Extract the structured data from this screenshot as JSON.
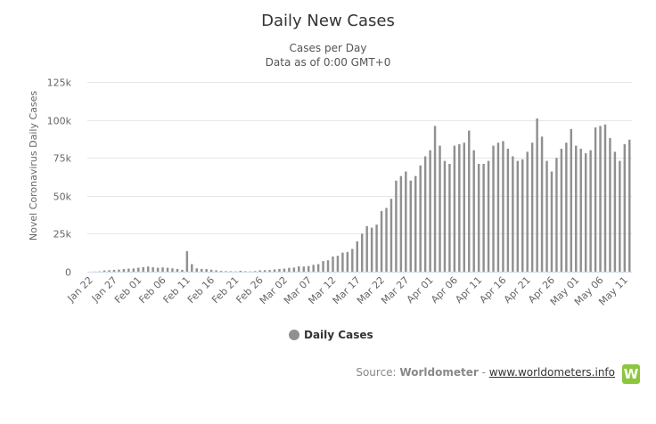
{
  "chart_data": {
    "type": "bar",
    "title": "Daily New Cases",
    "subtitle": [
      "Cases per Day",
      "Data as of 0:00 GMT+0"
    ],
    "ylabel": "Novel Coronavirus Daily Cases",
    "xlabel": "",
    "ylim": [
      0,
      125000
    ],
    "yticks": [
      0,
      25000,
      50000,
      75000,
      100000,
      125000
    ],
    "ytick_labels": [
      "0",
      "25k",
      "50k",
      "75k",
      "100k",
      "125k"
    ],
    "xtick_labels": [
      "Jan 22",
      "Jan 27",
      "Feb 01",
      "Feb 06",
      "Feb 11",
      "Feb 16",
      "Feb 21",
      "Feb 26",
      "Mar 02",
      "Mar 07",
      "Mar 12",
      "Mar 17",
      "Mar 22",
      "Mar 27",
      "Apr 01",
      "Apr 06",
      "Apr 11",
      "Apr 16",
      "Apr 21",
      "Apr 26",
      "May 01",
      "May 06",
      "May 11"
    ],
    "grid": true,
    "legend_position": "bottom-center",
    "bar_color": "#909090",
    "series": [
      {
        "name": "Daily Cases",
        "values": [
          0,
          100,
          200,
          800,
          1000,
          1200,
          1400,
          1700,
          2000,
          2100,
          2600,
          3000,
          3400,
          2900,
          2600,
          2800,
          2600,
          2200,
          1800,
          1200,
          13500,
          5000,
          2200,
          1800,
          1700,
          1300,
          900,
          500,
          400,
          300,
          200,
          600,
          300,
          200,
          400,
          900,
          1000,
          1100,
          1500,
          1800,
          2000,
          2500,
          2700,
          3500,
          3400,
          3700,
          4500,
          5000,
          7000,
          7500,
          10000,
          10500,
          12500,
          13000,
          15000,
          20000,
          25000,
          30000,
          29000,
          31000,
          40000,
          42000,
          48000,
          60000,
          63000,
          66000,
          60000,
          63000,
          70000,
          76000,
          80000,
          96000,
          83000,
          73000,
          71000,
          83000,
          84000,
          85000,
          93000,
          80000,
          71000,
          71000,
          73000,
          83000,
          85000,
          86000,
          81000,
          76000,
          73000,
          74000,
          79000,
          85000,
          101000,
          89000,
          73000,
          66000,
          75000,
          81000,
          85000,
          94000,
          83000,
          81000,
          78000,
          80000,
          95000,
          96000,
          97000,
          88000,
          79000,
          73000,
          84000,
          87000
        ]
      }
    ]
  },
  "source": {
    "prefix": "Source:",
    "name": "Worldometer",
    "separator": "-",
    "link": "www.worldometers.info",
    "logo_letter": "W"
  }
}
